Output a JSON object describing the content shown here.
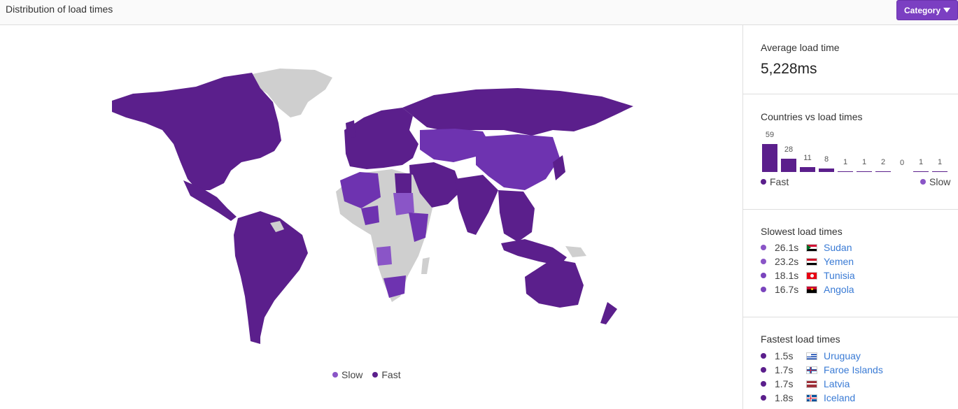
{
  "header": {
    "title": "Distribution of load times",
    "category_label": "Category"
  },
  "colors": {
    "fast": "#5b1f8c",
    "slow": "#8a55c7",
    "medium": "#6e33b0",
    "nodata": "#cfcfcf",
    "accent": "#7b3fc2",
    "link": "#3a7bd5"
  },
  "map": {
    "legend": [
      {
        "label": "Slow",
        "color": "#8a55c7"
      },
      {
        "label": "Fast",
        "color": "#5b1f8c"
      }
    ]
  },
  "average": {
    "title": "Average load time",
    "value": "5,228ms"
  },
  "histogram": {
    "title": "Countries vs load times",
    "counts": [
      "59",
      "28",
      "11",
      "8",
      "1",
      "1",
      "2",
      "0",
      "1",
      "1"
    ],
    "values": [
      59,
      28,
      11,
      8,
      1,
      1,
      2,
      0,
      1,
      1
    ],
    "legend_fast": "Fast",
    "legend_slow": "Slow"
  },
  "slowest": {
    "title": "Slowest load times",
    "items": [
      {
        "time": "26.1s",
        "country": "Sudan",
        "flag": "sudan-flag-icon",
        "color": "#8a55c7"
      },
      {
        "time": "23.2s",
        "country": "Yemen",
        "flag": "yemen-flag-icon",
        "color": "#8a55c7"
      },
      {
        "time": "18.1s",
        "country": "Tunisia",
        "flag": "tunisia-flag-icon",
        "color": "#7a44bd"
      },
      {
        "time": "16.7s",
        "country": "Angola",
        "flag": "angola-flag-icon",
        "color": "#7a44bd"
      }
    ]
  },
  "fastest": {
    "title": "Fastest load times",
    "items": [
      {
        "time": "1.5s",
        "country": "Uruguay",
        "flag": "uruguay-flag-icon",
        "color": "#5b1f8c"
      },
      {
        "time": "1.7s",
        "country": "Faroe Islands",
        "flag": "faroe-islands-flag-icon",
        "color": "#5b1f8c"
      },
      {
        "time": "1.7s",
        "country": "Latvia",
        "flag": "latvia-flag-icon",
        "color": "#5b1f8c"
      },
      {
        "time": "1.8s",
        "country": "Iceland",
        "flag": "iceland-flag-icon",
        "color": "#5b1f8c"
      }
    ]
  }
}
